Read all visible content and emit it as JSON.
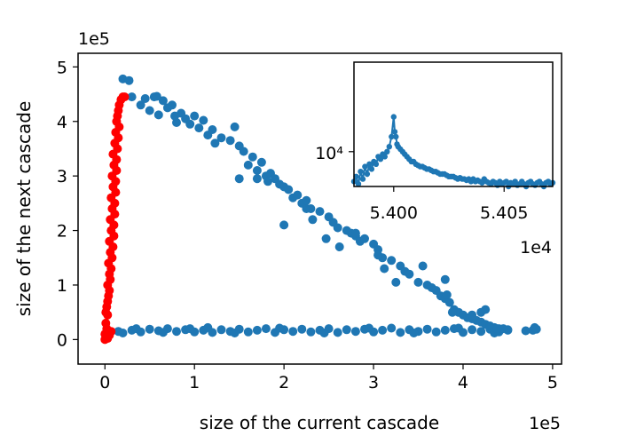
{
  "chart_data": [
    {
      "type": "scatter",
      "title": "",
      "xlabel": "size of the current cascade",
      "ylabel": "size of the next cascade",
      "x_multiplier_label": "1e5",
      "y_multiplier_label": "1e5",
      "xlim": [
        -0.3,
        5.1
      ],
      "ylim": [
        -0.45,
        5.25
      ],
      "xticks": [
        0,
        1,
        2,
        3,
        4,
        5
      ],
      "xtick_labels": [
        "0",
        "1",
        "2",
        "3",
        "4",
        "5"
      ],
      "yticks": [
        0,
        1,
        2,
        3,
        4,
        5
      ],
      "ytick_labels": [
        "0",
        "1",
        "2",
        "3",
        "4",
        "5"
      ],
      "grid": false,
      "colors": {
        "blue": "#1f77b4",
        "red": "#ff0000"
      },
      "series": [
        {
          "name": "blue",
          "color": "#1f77b4",
          "points": [
            [
              0.15,
              0.15
            ],
            [
              0.2,
              0.12
            ],
            [
              0.3,
              0.17
            ],
            [
              0.4,
              0.14
            ],
            [
              0.5,
              0.19
            ],
            [
              0.6,
              0.16
            ],
            [
              0.7,
              0.2
            ],
            [
              0.8,
              0.15
            ],
            [
              0.9,
              0.18
            ],
            [
              1.0,
              0.14
            ],
            [
              1.1,
              0.17
            ],
            [
              1.15,
              0.22
            ],
            [
              1.2,
              0.13
            ],
            [
              1.3,
              0.18
            ],
            [
              1.4,
              0.15
            ],
            [
              1.5,
              0.19
            ],
            [
              1.6,
              0.14
            ],
            [
              1.7,
              0.17
            ],
            [
              1.8,
              0.2
            ],
            [
              1.9,
              0.13
            ],
            [
              2.0,
              0.18
            ],
            [
              2.1,
              0.15
            ],
            [
              2.2,
              0.19
            ],
            [
              2.3,
              0.14
            ],
            [
              2.4,
              0.17
            ],
            [
              2.5,
              0.2
            ],
            [
              2.6,
              0.13
            ],
            [
              2.7,
              0.18
            ],
            [
              2.8,
              0.15
            ],
            [
              2.9,
              0.19
            ],
            [
              3.0,
              0.14
            ],
            [
              3.1,
              0.17
            ],
            [
              3.2,
              0.21
            ],
            [
              3.3,
              0.13
            ],
            [
              3.4,
              0.18
            ],
            [
              3.5,
              0.15
            ],
            [
              3.6,
              0.19
            ],
            [
              3.7,
              0.14
            ],
            [
              3.8,
              0.17
            ],
            [
              3.9,
              0.2
            ],
            [
              4.0,
              0.13
            ],
            [
              4.1,
              0.18
            ],
            [
              4.2,
              0.15
            ],
            [
              4.3,
              0.19
            ],
            [
              4.4,
              0.14
            ],
            [
              4.5,
              0.17
            ],
            [
              0.35,
              0.2
            ],
            [
              0.65,
              0.13
            ],
            [
              0.95,
              0.2
            ],
            [
              1.45,
              0.12
            ],
            [
              1.95,
              0.21
            ],
            [
              2.45,
              0.12
            ],
            [
              2.95,
              0.21
            ],
            [
              3.45,
              0.12
            ],
            [
              3.95,
              0.21
            ],
            [
              4.35,
              0.12
            ],
            [
              4.78,
              0.17
            ],
            [
              4.8,
              0.22
            ],
            [
              4.82,
              0.19
            ],
            [
              0.2,
              4.78
            ],
            [
              0.27,
              4.75
            ],
            [
              0.3,
              4.45
            ],
            [
              0.4,
              4.3
            ],
            [
              0.45,
              4.42
            ],
            [
              0.5,
              4.2
            ],
            [
              0.55,
              4.45
            ],
            [
              0.6,
              4.12
            ],
            [
              0.65,
              4.38
            ],
            [
              0.7,
              4.25
            ],
            [
              0.75,
              4.3
            ],
            [
              0.8,
              3.98
            ],
            [
              0.85,
              4.15
            ],
            [
              0.9,
              4.05
            ],
            [
              0.95,
              3.95
            ],
            [
              1.0,
              4.1
            ],
            [
              1.05,
              3.88
            ],
            [
              1.1,
              4.02
            ],
            [
              1.15,
              3.75
            ],
            [
              1.2,
              3.85
            ],
            [
              1.3,
              3.7
            ],
            [
              1.4,
              3.65
            ],
            [
              1.45,
              3.9
            ],
            [
              1.5,
              3.55
            ],
            [
              1.55,
              3.45
            ],
            [
              1.6,
              3.2
            ],
            [
              1.65,
              3.35
            ],
            [
              1.7,
              3.1
            ],
            [
              1.75,
              3.25
            ],
            [
              1.8,
              3.0
            ],
            [
              1.85,
              3.05
            ],
            [
              1.9,
              2.95
            ],
            [
              1.95,
              2.85
            ],
            [
              2.0,
              2.8
            ],
            [
              2.05,
              2.75
            ],
            [
              2.1,
              2.6
            ],
            [
              2.15,
              2.65
            ],
            [
              2.2,
              2.5
            ],
            [
              2.25,
              2.55
            ],
            [
              2.3,
              2.4
            ],
            [
              2.4,
              2.35
            ],
            [
              2.5,
              2.25
            ],
            [
              2.55,
              2.15
            ],
            [
              2.6,
              2.05
            ],
            [
              2.7,
              2.0
            ],
            [
              2.75,
              1.95
            ],
            [
              2.8,
              1.9
            ],
            [
              2.85,
              1.8
            ],
            [
              2.9,
              1.85
            ],
            [
              3.0,
              1.75
            ],
            [
              3.05,
              1.65
            ],
            [
              3.1,
              1.5
            ],
            [
              3.2,
              1.45
            ],
            [
              3.3,
              1.35
            ],
            [
              3.35,
              1.25
            ],
            [
              3.4,
              1.2
            ],
            [
              3.5,
              1.05
            ],
            [
              3.6,
              1.0
            ],
            [
              3.65,
              0.95
            ],
            [
              3.7,
              0.9
            ],
            [
              3.75,
              0.8
            ],
            [
              3.8,
              0.75
            ],
            [
              3.85,
              0.68
            ],
            [
              3.9,
              0.55
            ],
            [
              3.95,
              0.5
            ],
            [
              4.0,
              0.45
            ],
            [
              4.05,
              0.4
            ],
            [
              4.1,
              0.38
            ],
            [
              4.15,
              0.35
            ],
            [
              4.2,
              0.32
            ],
            [
              4.25,
              0.28
            ],
            [
              4.3,
              0.25
            ],
            [
              4.35,
              0.22
            ],
            [
              4.4,
              0.2
            ],
            [
              4.45,
              0.2
            ],
            [
              4.5,
              0.18
            ],
            [
              1.5,
              2.95
            ],
            [
              1.7,
              2.95
            ],
            [
              2.0,
              2.1
            ],
            [
              2.25,
              2.4
            ],
            [
              2.8,
              1.95
            ],
            [
              3.05,
              1.55
            ],
            [
              3.25,
              1.05
            ],
            [
              3.55,
              1.35
            ],
            [
              3.8,
              1.1
            ],
            [
              3.82,
              0.82
            ],
            [
              3.88,
              0.5
            ],
            [
              4.1,
              0.45
            ],
            [
              4.2,
              0.5
            ],
            [
              4.25,
              0.55
            ],
            [
              4.38,
              0.2
            ],
            [
              4.7,
              0.16
            ],
            [
              2.32,
              2.2
            ],
            [
              2.62,
              1.7
            ],
            [
              0.58,
              4.46
            ],
            [
              0.78,
              4.1
            ],
            [
              1.23,
              3.6
            ],
            [
              1.82,
              2.9
            ],
            [
              2.47,
              1.85
            ],
            [
              3.12,
              1.3
            ]
          ]
        },
        {
          "name": "red",
          "color": "#ff0000",
          "points": [
            [
              0.0,
              0.0
            ],
            [
              0.01,
              0.05
            ],
            [
              0.0,
              0.1
            ],
            [
              0.02,
              0.2
            ],
            [
              0.01,
              0.3
            ],
            [
              0.03,
              0.45
            ],
            [
              0.02,
              0.6
            ],
            [
              0.04,
              0.8
            ],
            [
              0.03,
              1.0
            ],
            [
              0.05,
              1.2
            ],
            [
              0.04,
              1.4
            ],
            [
              0.06,
              1.6
            ],
            [
              0.05,
              1.8
            ],
            [
              0.07,
              2.0
            ],
            [
              0.06,
              2.2
            ],
            [
              0.08,
              2.4
            ],
            [
              0.07,
              2.6
            ],
            [
              0.09,
              2.8
            ],
            [
              0.08,
              3.0
            ],
            [
              0.1,
              3.2
            ],
            [
              0.09,
              3.4
            ],
            [
              0.11,
              3.6
            ],
            [
              0.12,
              3.8
            ],
            [
              0.13,
              4.0
            ],
            [
              0.14,
              4.1
            ],
            [
              0.15,
              4.2
            ],
            [
              0.16,
              4.3
            ],
            [
              0.18,
              4.4
            ],
            [
              0.2,
              4.45
            ],
            [
              0.22,
              4.45
            ],
            [
              0.03,
              0.02
            ],
            [
              0.05,
              0.08
            ],
            [
              0.07,
              0.15
            ],
            [
              0.01,
              0.5
            ],
            [
              0.03,
              0.7
            ],
            [
              0.05,
              0.9
            ],
            [
              0.06,
              1.1
            ],
            [
              0.07,
              1.3
            ],
            [
              0.08,
              1.5
            ],
            [
              0.09,
              1.7
            ],
            [
              0.1,
              1.9
            ],
            [
              0.1,
              2.1
            ],
            [
              0.11,
              2.3
            ],
            [
              0.11,
              2.5
            ],
            [
              0.12,
              2.7
            ],
            [
              0.12,
              2.9
            ],
            [
              0.13,
              3.1
            ],
            [
              0.13,
              3.3
            ],
            [
              0.14,
              3.5
            ],
            [
              0.15,
              3.7
            ],
            [
              0.16,
              3.9
            ]
          ]
        }
      ]
    },
    {
      "type": "line",
      "title": "",
      "inset": true,
      "x_multiplier_label": "1e4",
      "xlim": [
        5.3982,
        5.4072
      ],
      "ylim": [
        1.0,
        1.5
      ],
      "xticks": [
        5.4,
        5.405
      ],
      "xtick_labels": [
        "5.400",
        "5.405"
      ],
      "yticks": [
        1.14
      ],
      "ytick_labels": [
        "10⁴"
      ],
      "color": "#1f77b4",
      "x": [
        5.3982,
        5.3983,
        5.3984,
        5.3985,
        5.3986,
        5.3987,
        5.3988,
        5.3989,
        5.399,
        5.3991,
        5.3992,
        5.3993,
        5.3994,
        5.3995,
        5.3996,
        5.3997,
        5.3998,
        5.3999,
        5.4,
        5.40005,
        5.4001,
        5.40015,
        5.4002,
        5.4003,
        5.4004,
        5.4005,
        5.4006,
        5.4007,
        5.4008,
        5.4009,
        5.401,
        5.4011,
        5.4012,
        5.4013,
        5.4014,
        5.4015,
        5.4016,
        5.4017,
        5.4018,
        5.4019,
        5.402,
        5.4021,
        5.4022,
        5.4023,
        5.4024,
        5.4025,
        5.4026,
        5.4027,
        5.4028,
        5.4029,
        5.403,
        5.4031,
        5.4032,
        5.4033,
        5.4034,
        5.4035,
        5.4036,
        5.4037,
        5.4038,
        5.4039,
        5.404,
        5.4041,
        5.4042,
        5.4043,
        5.4044,
        5.4045,
        5.4046,
        5.4047,
        5.4048,
        5.4049,
        5.405,
        5.4051,
        5.4052,
        5.4053,
        5.4054,
        5.4055,
        5.4056,
        5.4057,
        5.4058,
        5.4059,
        5.406,
        5.4061,
        5.4062,
        5.4063,
        5.4064,
        5.4065,
        5.4066,
        5.4067,
        5.4068,
        5.4069,
        5.407,
        5.4071,
        5.4072
      ],
      "y": [
        1.02,
        1.04,
        1.01,
        1.06,
        1.03,
        1.08,
        1.05,
        1.09,
        1.07,
        1.1,
        1.09,
        1.12,
        1.11,
        1.13,
        1.12,
        1.14,
        1.16,
        1.2,
        1.28,
        1.22,
        1.2,
        1.17,
        1.16,
        1.15,
        1.14,
        1.13,
        1.12,
        1.11,
        1.1,
        1.1,
        1.09,
        1.085,
        1.08,
        1.08,
        1.075,
        1.07,
        1.07,
        1.065,
        1.06,
        1.06,
        1.055,
        1.05,
        1.05,
        1.05,
        1.045,
        1.04,
        1.04,
        1.04,
        1.035,
        1.03,
        1.035,
        1.03,
        1.03,
        1.025,
        1.03,
        1.02,
        1.03,
        1.02,
        1.025,
        1.02,
        1.015,
        1.03,
        1.02,
        1.015,
        1.01,
        1.02,
        1.015,
        1.005,
        1.02,
        1.01,
        1.015,
        1.02,
        1.0,
        1.015,
        1.01,
        1.02,
        1.005,
        1.01,
        1.02,
        1.01,
        1.0,
        1.015,
        1.02,
        1.01,
        1.005,
        1.015,
        1.02,
        1.01,
        1.0,
        1.015,
        1.02,
        1.01,
        1.015
      ]
    }
  ]
}
